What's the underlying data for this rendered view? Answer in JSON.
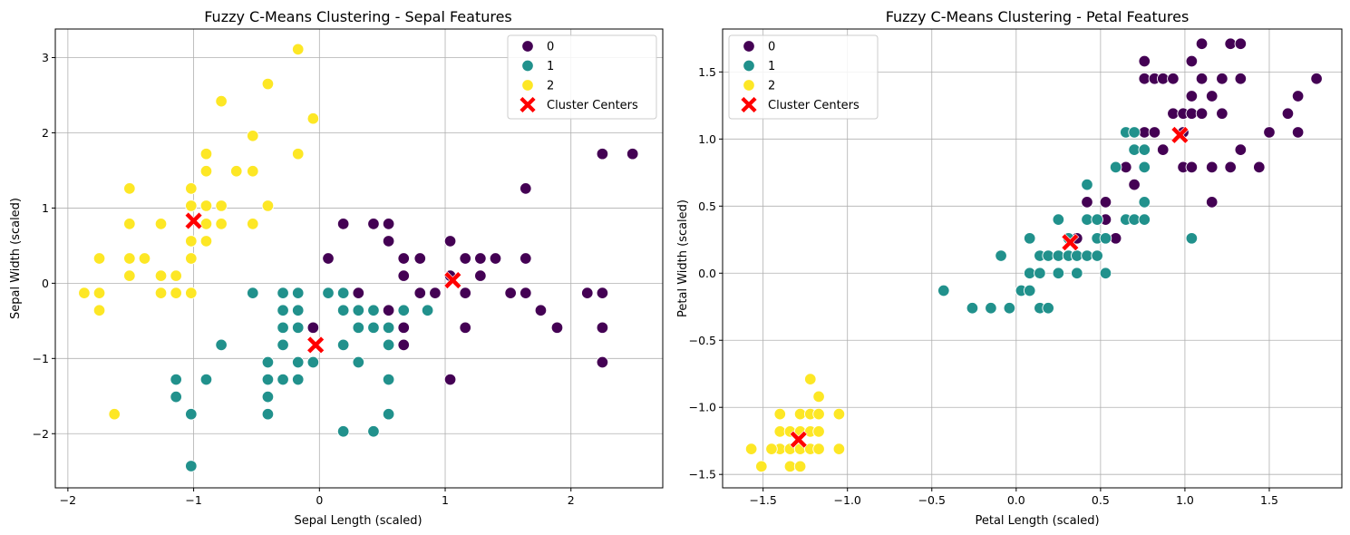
{
  "chart_data": [
    {
      "type": "scatter",
      "title": "Fuzzy C-Means Clustering - Sepal Features",
      "xlabel": "Sepal Length (scaled)",
      "ylabel": "Sepal Width (scaled)",
      "xlim": [
        -2.1,
        2.73
      ],
      "ylim": [
        -2.72,
        3.38
      ],
      "xticks": [
        -2,
        -1,
        0,
        1,
        2
      ],
      "yticks": [
        -2,
        -1,
        0,
        1,
        2,
        3
      ],
      "grid": true,
      "legend_position": "top-right",
      "legend_entries": [
        "0",
        "1",
        "2",
        "Cluster Centers"
      ],
      "series": [
        {
          "name": "0",
          "color": "#440154",
          "points": [
            [
              2.25,
              1.72
            ],
            [
              2.49,
              1.72
            ],
            [
              1.64,
              1.26
            ],
            [
              1.04,
              0.56
            ],
            [
              0.19,
              0.79
            ],
            [
              0.43,
              0.79
            ],
            [
              0.55,
              0.79
            ],
            [
              0.55,
              0.56
            ],
            [
              0.07,
              0.33
            ],
            [
              0.67,
              0.33
            ],
            [
              0.8,
              0.33
            ],
            [
              1.16,
              0.33
            ],
            [
              1.28,
              0.33
            ],
            [
              1.4,
              0.33
            ],
            [
              1.64,
              0.33
            ],
            [
              0.67,
              0.1
            ],
            [
              1.04,
              0.1
            ],
            [
              1.28,
              0.1
            ],
            [
              0.8,
              -0.13
            ],
            [
              0.92,
              -0.13
            ],
            [
              1.16,
              -0.13
            ],
            [
              1.52,
              -0.13
            ],
            [
              1.64,
              -0.13
            ],
            [
              2.13,
              -0.13
            ],
            [
              2.25,
              -0.13
            ],
            [
              0.31,
              -0.13
            ],
            [
              0.55,
              -0.36
            ],
            [
              1.76,
              -0.36
            ],
            [
              -0.05,
              -0.59
            ],
            [
              0.67,
              -0.59
            ],
            [
              1.16,
              -0.59
            ],
            [
              1.89,
              -0.59
            ],
            [
              2.25,
              -0.59
            ],
            [
              0.67,
              -0.82
            ],
            [
              2.25,
              -1.05
            ],
            [
              1.04,
              -1.28
            ]
          ]
        },
        {
          "name": "1",
          "color": "#21918c",
          "points": [
            [
              -0.53,
              -0.13
            ],
            [
              -0.29,
              -0.13
            ],
            [
              -0.17,
              -0.13
            ],
            [
              0.07,
              -0.13
            ],
            [
              0.19,
              -0.13
            ],
            [
              -0.29,
              -0.36
            ],
            [
              -0.17,
              -0.36
            ],
            [
              0.19,
              -0.36
            ],
            [
              0.31,
              -0.36
            ],
            [
              0.43,
              -0.36
            ],
            [
              0.67,
              -0.36
            ],
            [
              0.86,
              -0.36
            ],
            [
              -0.29,
              -0.59
            ],
            [
              -0.17,
              -0.59
            ],
            [
              0.31,
              -0.59
            ],
            [
              0.43,
              -0.59
            ],
            [
              0.55,
              -0.59
            ],
            [
              -0.78,
              -0.82
            ],
            [
              -0.29,
              -0.82
            ],
            [
              0.19,
              -0.82
            ],
            [
              0.55,
              -0.82
            ],
            [
              -0.41,
              -1.05
            ],
            [
              -0.17,
              -1.05
            ],
            [
              -0.05,
              -1.05
            ],
            [
              0.31,
              -1.05
            ],
            [
              -1.14,
              -1.28
            ],
            [
              -0.9,
              -1.28
            ],
            [
              -0.41,
              -1.28
            ],
            [
              -0.29,
              -1.28
            ],
            [
              -0.17,
              -1.28
            ],
            [
              0.55,
              -1.28
            ],
            [
              -1.14,
              -1.51
            ],
            [
              -0.41,
              -1.51
            ],
            [
              -1.02,
              -1.74
            ],
            [
              -0.41,
              -1.74
            ],
            [
              0.55,
              -1.74
            ],
            [
              0.19,
              -1.97
            ],
            [
              0.43,
              -1.97
            ],
            [
              -1.02,
              -2.43
            ]
          ]
        },
        {
          "name": "2",
          "color": "#fde725",
          "points": [
            [
              -0.17,
              3.11
            ],
            [
              -0.41,
              2.65
            ],
            [
              -0.78,
              2.42
            ],
            [
              -0.05,
              2.19
            ],
            [
              -0.53,
              1.96
            ],
            [
              -0.9,
              1.72
            ],
            [
              -0.17,
              1.72
            ],
            [
              -0.9,
              1.49
            ],
            [
              -0.66,
              1.49
            ],
            [
              -0.53,
              1.49
            ],
            [
              -1.51,
              1.26
            ],
            [
              -1.02,
              1.26
            ],
            [
              -1.02,
              1.03
            ],
            [
              -0.9,
              1.03
            ],
            [
              -0.78,
              1.03
            ],
            [
              -0.41,
              1.03
            ],
            [
              -1.51,
              0.79
            ],
            [
              -1.26,
              0.79
            ],
            [
              -0.9,
              0.79
            ],
            [
              -0.78,
              0.79
            ],
            [
              -0.53,
              0.79
            ],
            [
              -1.02,
              0.56
            ],
            [
              -0.9,
              0.56
            ],
            [
              -1.75,
              0.33
            ],
            [
              -1.51,
              0.33
            ],
            [
              -1.39,
              0.33
            ],
            [
              -1.02,
              0.33
            ],
            [
              -1.51,
              0.1
            ],
            [
              -1.26,
              0.1
            ],
            [
              -1.14,
              0.1
            ],
            [
              -1.87,
              -0.13
            ],
            [
              -1.75,
              -0.13
            ],
            [
              -1.26,
              -0.13
            ],
            [
              -1.14,
              -0.13
            ],
            [
              -1.02,
              -0.13
            ],
            [
              -1.75,
              -0.36
            ],
            [
              -1.63,
              -1.74
            ]
          ]
        }
      ],
      "centers": {
        "name": "Cluster Centers",
        "color": "#ff0000",
        "points": [
          [
            -1.0,
            0.83
          ],
          [
            -0.03,
            -0.82
          ],
          [
            1.06,
            0.04
          ]
        ]
      }
    },
    {
      "type": "scatter",
      "title": "Fuzzy C-Means Clustering - Petal Features",
      "xlabel": "Petal Length (scaled)",
      "ylabel": "Petal Width (scaled)",
      "xlim": [
        -1.74,
        1.93
      ],
      "ylim": [
        -1.6,
        1.82
      ],
      "xticks": [
        -1.5,
        -1.0,
        -0.5,
        0.0,
        0.5,
        1.0,
        1.5
      ],
      "yticks": [
        -1.5,
        -1.0,
        -0.5,
        0.0,
        0.5,
        1.0,
        1.5
      ],
      "tick_labels_x": [
        "−1.5",
        "−1.0",
        "−0.5",
        "0.0",
        "0.5",
        "1.0",
        "1.5"
      ],
      "tick_labels_y": [
        "−1.5",
        "−1.0",
        "−0.5",
        "0.0",
        "0.5",
        "1.0",
        "1.5"
      ],
      "grid": true,
      "legend_position": "top-left",
      "legend_entries": [
        "0",
        "1",
        "2",
        "Cluster Centers"
      ],
      "series": [
        {
          "name": "0",
          "color": "#440154",
          "points": [
            [
              1.1,
              1.71
            ],
            [
              1.27,
              1.71
            ],
            [
              1.33,
              1.71
            ],
            [
              0.76,
              1.58
            ],
            [
              1.04,
              1.58
            ],
            [
              0.76,
              1.45
            ],
            [
              0.82,
              1.45
            ],
            [
              0.87,
              1.45
            ],
            [
              0.93,
              1.45
            ],
            [
              1.1,
              1.45
            ],
            [
              1.22,
              1.45
            ],
            [
              1.33,
              1.45
            ],
            [
              1.78,
              1.45
            ],
            [
              1.16,
              1.32
            ],
            [
              1.04,
              1.32
            ],
            [
              1.67,
              1.32
            ],
            [
              0.93,
              1.19
            ],
            [
              0.99,
              1.19
            ],
            [
              1.04,
              1.19
            ],
            [
              1.1,
              1.19
            ],
            [
              1.22,
              1.19
            ],
            [
              1.61,
              1.19
            ],
            [
              0.76,
              1.05
            ],
            [
              0.82,
              1.05
            ],
            [
              0.99,
              1.05
            ],
            [
              1.5,
              1.05
            ],
            [
              1.67,
              1.05
            ],
            [
              0.87,
              0.92
            ],
            [
              1.33,
              0.92
            ],
            [
              0.65,
              0.79
            ],
            [
              0.99,
              0.79
            ],
            [
              1.04,
              0.79
            ],
            [
              1.16,
              0.79
            ],
            [
              1.27,
              0.79
            ],
            [
              1.44,
              0.79
            ],
            [
              0.7,
              0.66
            ],
            [
              1.16,
              0.53
            ],
            [
              0.42,
              0.53
            ],
            [
              0.53,
              0.53
            ],
            [
              0.48,
              0.4
            ],
            [
              0.53,
              0.4
            ],
            [
              0.59,
              0.26
            ],
            [
              0.36,
              0.26
            ]
          ]
        },
        {
          "name": "1",
          "color": "#21918c",
          "points": [
            [
              0.65,
              1.05
            ],
            [
              0.7,
              1.05
            ],
            [
              0.7,
              0.92
            ],
            [
              0.76,
              0.92
            ],
            [
              0.59,
              0.79
            ],
            [
              0.76,
              0.79
            ],
            [
              0.42,
              0.66
            ],
            [
              0.76,
              0.53
            ],
            [
              0.25,
              0.4
            ],
            [
              0.42,
              0.4
            ],
            [
              0.48,
              0.4
            ],
            [
              0.65,
              0.4
            ],
            [
              0.7,
              0.4
            ],
            [
              0.76,
              0.4
            ],
            [
              0.08,
              0.26
            ],
            [
              0.31,
              0.26
            ],
            [
              0.48,
              0.26
            ],
            [
              0.53,
              0.26
            ],
            [
              1.04,
              0.26
            ],
            [
              -0.09,
              0.13
            ],
            [
              0.14,
              0.13
            ],
            [
              0.19,
              0.13
            ],
            [
              0.25,
              0.13
            ],
            [
              0.31,
              0.13
            ],
            [
              0.36,
              0.13
            ],
            [
              0.42,
              0.13
            ],
            [
              0.48,
              0.13
            ],
            [
              0.08,
              0.0
            ],
            [
              0.14,
              0.0
            ],
            [
              0.25,
              0.0
            ],
            [
              0.36,
              0.0
            ],
            [
              0.53,
              0.0
            ],
            [
              -0.43,
              -0.13
            ],
            [
              0.03,
              -0.13
            ],
            [
              0.08,
              -0.13
            ],
            [
              -0.26,
              -0.26
            ],
            [
              -0.15,
              -0.26
            ],
            [
              -0.04,
              -0.26
            ],
            [
              0.14,
              -0.26
            ],
            [
              0.19,
              -0.26
            ]
          ]
        },
        {
          "name": "2",
          "color": "#fde725",
          "points": [
            [
              -1.22,
              -0.79
            ],
            [
              -1.17,
              -0.92
            ],
            [
              -1.4,
              -1.05
            ],
            [
              -1.28,
              -1.05
            ],
            [
              -1.22,
              -1.05
            ],
            [
              -1.17,
              -1.05
            ],
            [
              -1.05,
              -1.05
            ],
            [
              -1.4,
              -1.18
            ],
            [
              -1.34,
              -1.18
            ],
            [
              -1.28,
              -1.18
            ],
            [
              -1.22,
              -1.18
            ],
            [
              -1.17,
              -1.18
            ],
            [
              -1.4,
              -1.31
            ],
            [
              -1.34,
              -1.31
            ],
            [
              -1.28,
              -1.31
            ],
            [
              -1.22,
              -1.31
            ],
            [
              -1.17,
              -1.31
            ],
            [
              -1.05,
              -1.31
            ],
            [
              -1.57,
              -1.31
            ],
            [
              -1.45,
              -1.31
            ],
            [
              -1.51,
              -1.44
            ],
            [
              -1.34,
              -1.44
            ],
            [
              -1.28,
              -1.44
            ]
          ]
        }
      ],
      "centers": {
        "name": "Cluster Centers",
        "color": "#ff0000",
        "points": [
          [
            -1.29,
            -1.24
          ],
          [
            0.32,
            0.23
          ],
          [
            0.97,
            1.03
          ]
        ]
      }
    }
  ]
}
